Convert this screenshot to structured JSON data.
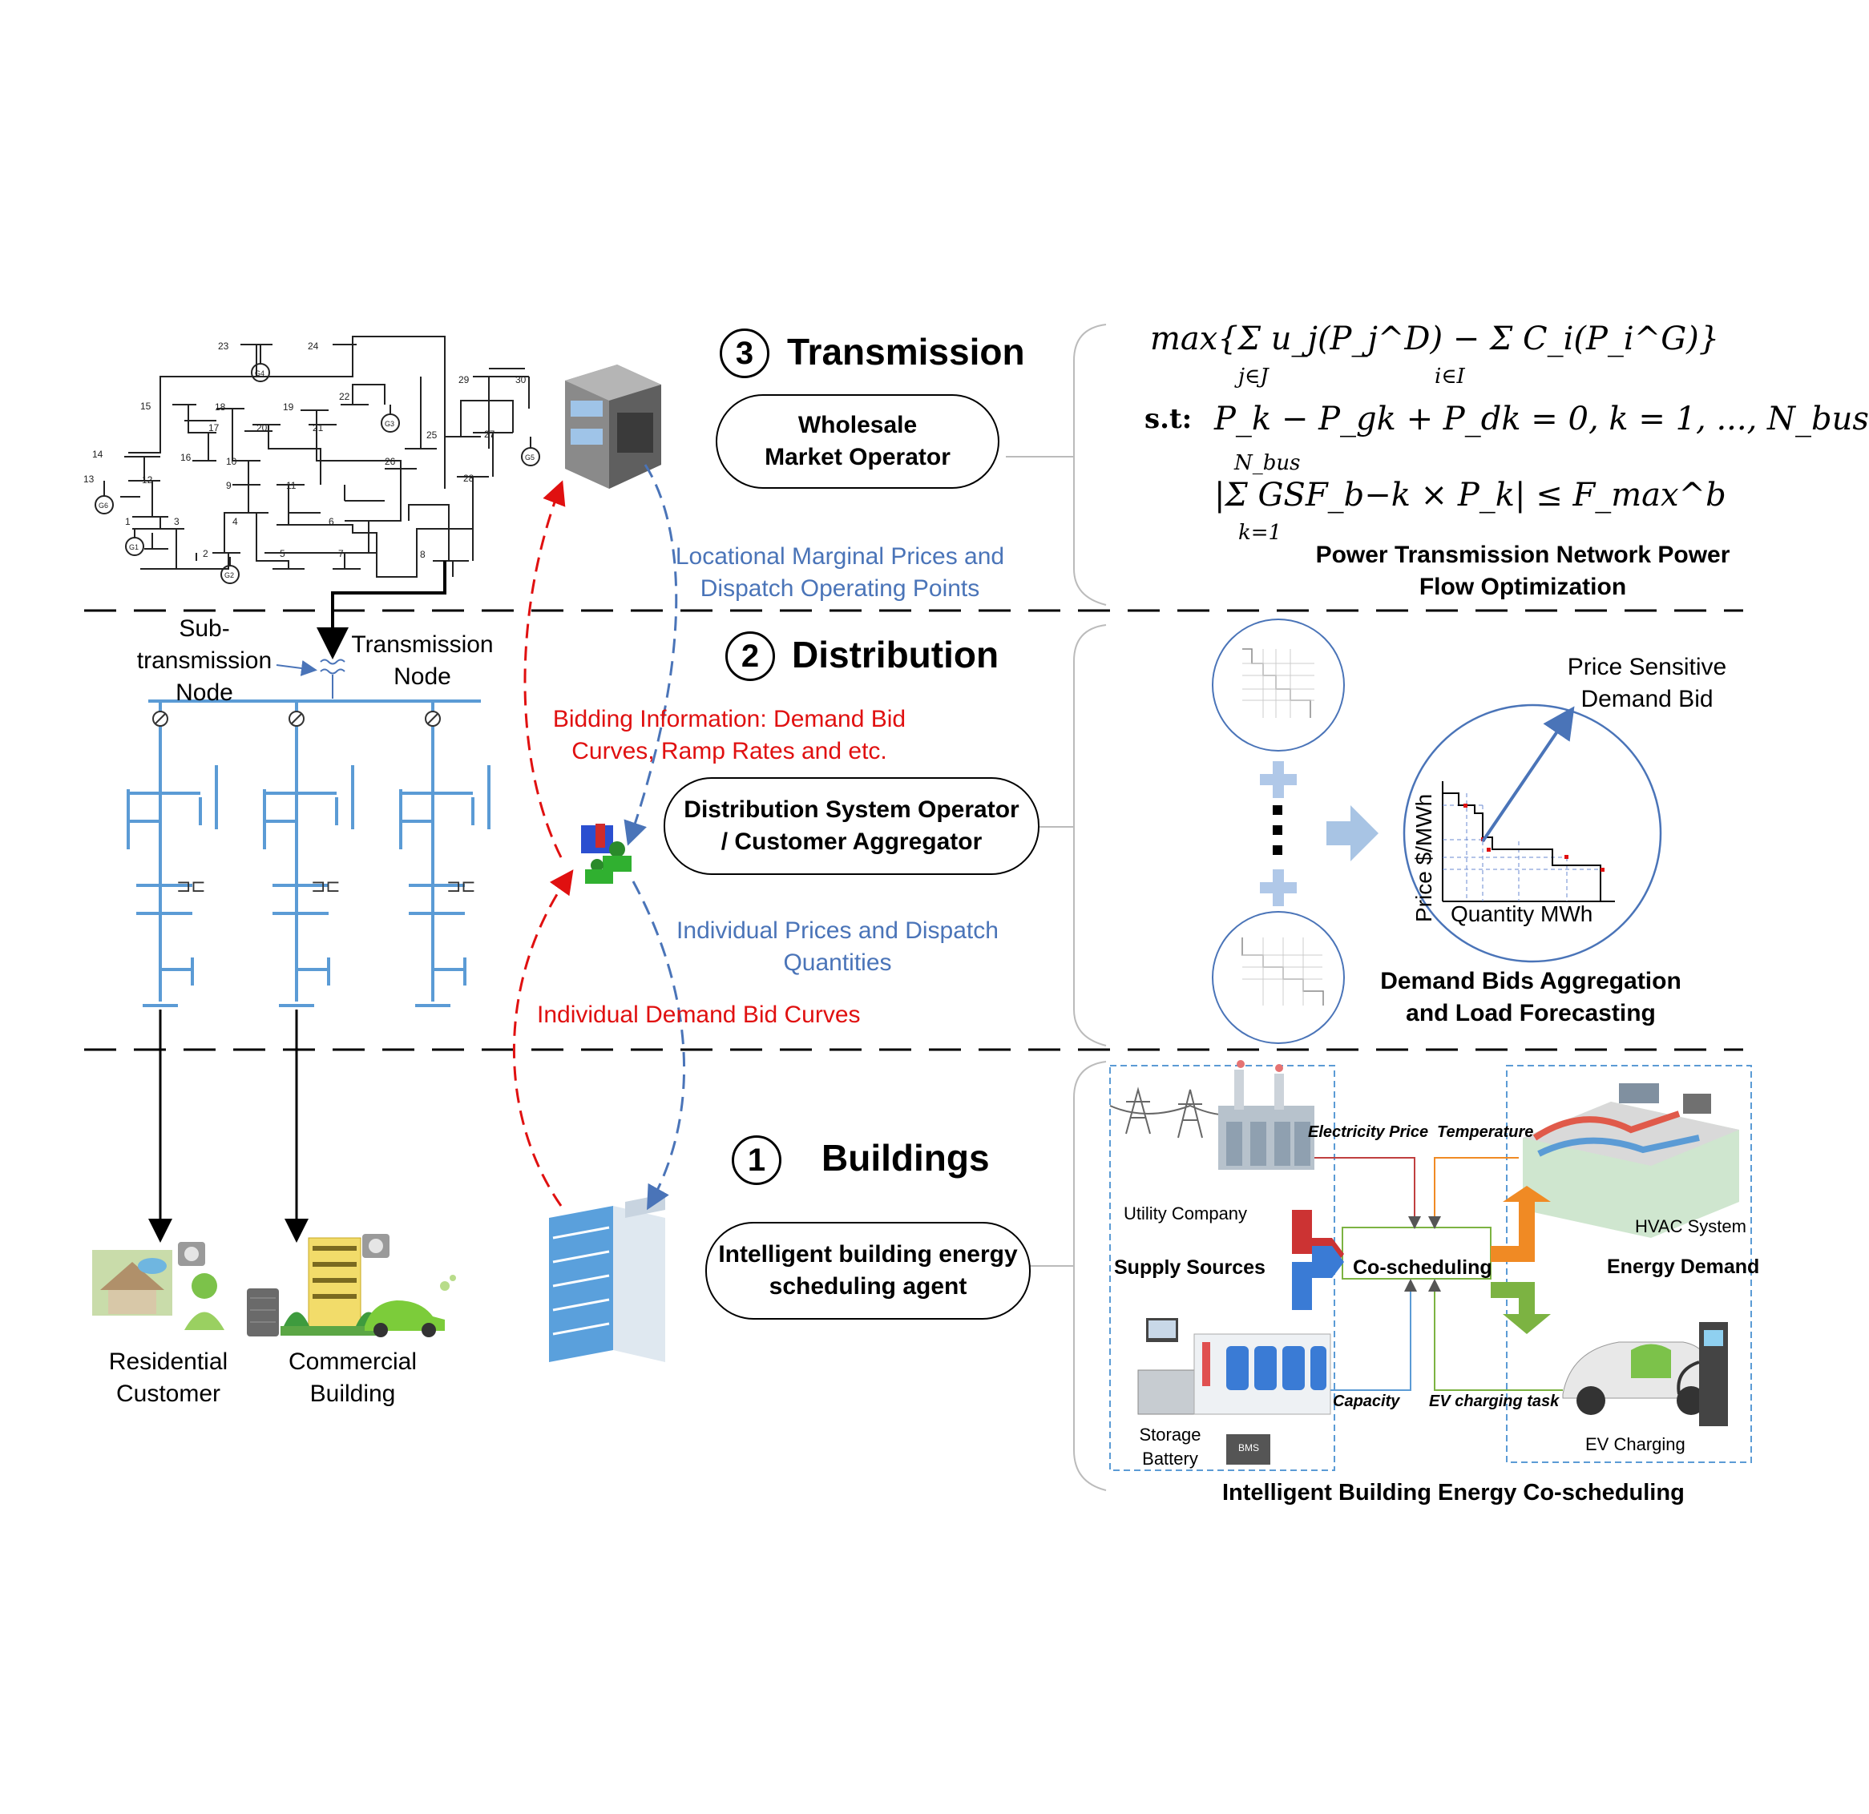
{
  "sections": {
    "transmission": {
      "number": "3",
      "title": "Transmission",
      "operator": "Wholesale  Market Operator"
    },
    "distribution": {
      "number": "2",
      "title": "Distribution",
      "operator": "Distribution System Operator / Customer Aggregator"
    },
    "buildings": {
      "number": "1",
      "title": "Buildings",
      "operator": "Intelligent building energy scheduling agent"
    }
  },
  "flows": {
    "lmp": "Locational Marginal Prices and Dispatch Operating Points",
    "bidding": "Bidding Information: Demand Bid Curves, Ramp Rates and etc.",
    "individual_prices": "Individual Prices and Dispatch Quantities",
    "individual_bids": "Individual Demand Bid Curves"
  },
  "transmission_panel": {
    "objective": "max{Σ u_j(P_j^D) − Σ C_i(P_i^G)}",
    "sum1_index": "j∈J",
    "sum2_index": "i∈I",
    "st_label": "s.t:",
    "constraint1": "P_k − P_gk + P_dk = 0, k = 1, ..., N_bus",
    "constraint2": "|Σ GSF_b−k × P_k| ≤ F_max^b",
    "sum3_top": "N_bus",
    "sum3_bottom": "k=1",
    "caption": "Power Transmission Network Power Flow Optimization"
  },
  "grid_labels": {
    "subtransmission": "Sub-transmission Node",
    "transmission_node": "Transmission Node",
    "residential": "Residential Customer",
    "commercial": "Commercial Building",
    "bus_numbers": [
      "23",
      "24",
      "29",
      "30",
      "15",
      "18",
      "19",
      "22",
      "17",
      "20",
      "21",
      "25",
      "27",
      "14",
      "16",
      "10",
      "26",
      "28",
      "13",
      "12",
      "9",
      "11",
      "6",
      "1",
      "3",
      "4",
      "2",
      "5",
      "7",
      "8"
    ],
    "generators": [
      "G4",
      "G3",
      "G5",
      "G6",
      "G1",
      "G2"
    ]
  },
  "distribution_panel": {
    "price_sensitive": "Price Sensitive Demand Bid",
    "ylabel": "Price $/MWh",
    "xlabel": "Quantity MWh",
    "caption": "Demand Bids Aggregation and Load Forecasting"
  },
  "building_panel": {
    "electricity_price": "Electricity Price",
    "temperature": "Temperature",
    "utility": "Utility Company",
    "supply_sources": "Supply Sources",
    "coscheduling": "Co-scheduling",
    "hvac": "HVAC System",
    "energy_demand": "Energy Demand",
    "capacity": "Capacity",
    "ev_task": "EV charging task",
    "storage": "Storage Battery",
    "bms": "BMS",
    "ev_charging": "EV Charging",
    "caption": "Intelligent Building Energy Co-scheduling"
  },
  "colors": {
    "flow_blue": "#4a74b8",
    "flow_red": "#e01010",
    "feeder_blue": "#5b9bd5"
  }
}
